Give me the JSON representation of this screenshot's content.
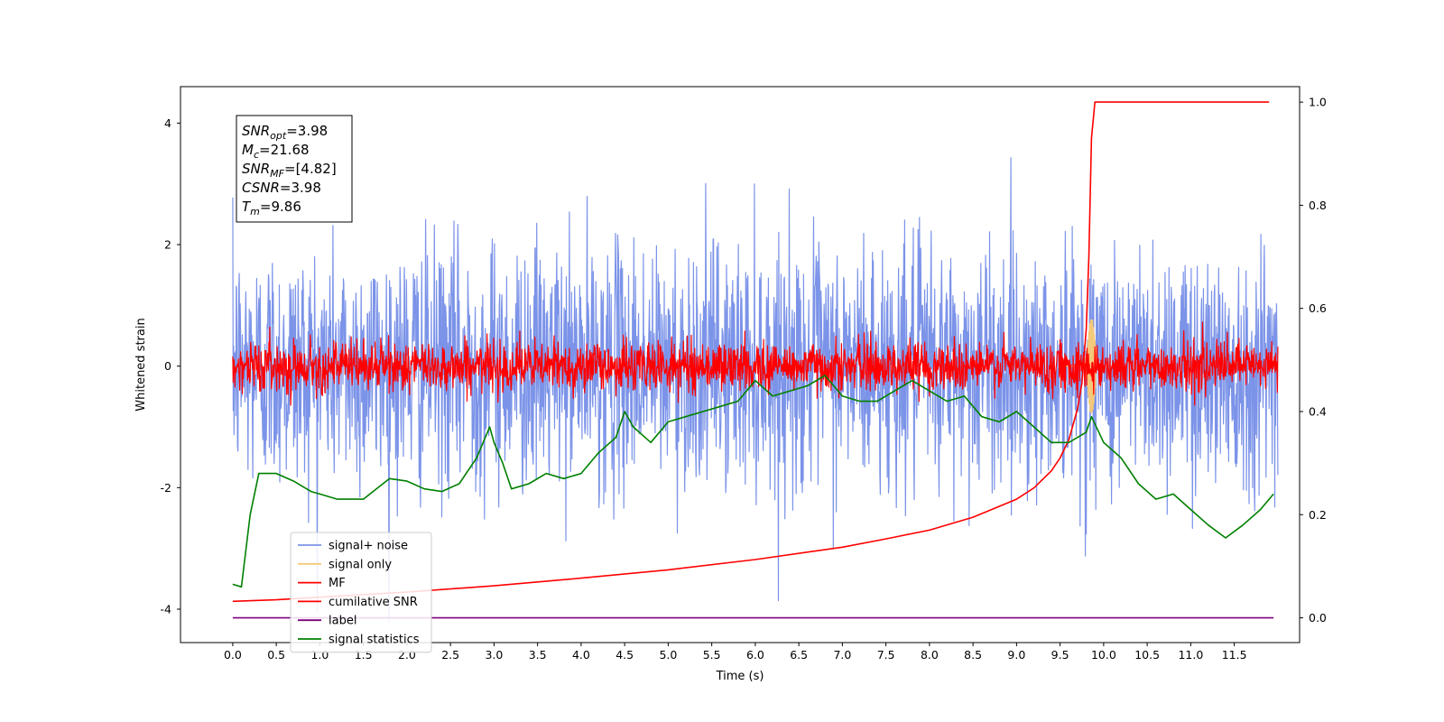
{
  "chart_data": {
    "type": "line",
    "xlabel": "Time (s)",
    "ylabel": "Whitened strain",
    "xlim": [
      -0.6,
      12.25
    ],
    "ylim": [
      -4.55,
      4.6
    ],
    "ylim_right": [
      -0.048,
      1.03
    ],
    "x_ticks": [
      "0.0",
      "0.5",
      "1.0",
      "1.5",
      "2.0",
      "2.5",
      "3.0",
      "3.5",
      "4.0",
      "4.5",
      "5.0",
      "5.5",
      "6.0",
      "6.5",
      "7.0",
      "7.5",
      "8.0",
      "8.5",
      "9.0",
      "9.5",
      "10.0",
      "10.5",
      "11.0",
      "11.5"
    ],
    "y_ticks_left": [
      "-4",
      "-2",
      "0",
      "2",
      "4"
    ],
    "y_ticks_right": [
      "0.0",
      "0.2",
      "0.4",
      "0.6",
      "0.8",
      "1.0"
    ],
    "grid": false,
    "legend_position": "lower-left",
    "annotation": {
      "lines": [
        {
          "main": "SNR",
          "sub": "opt",
          "value": "=3.98"
        },
        {
          "main": "M",
          "sub": "c",
          "value": "=21.68"
        },
        {
          "main": "SNR",
          "sub": "MF",
          "value": "=[4.82]"
        },
        {
          "main": "CSNR",
          "sub": "",
          "value": "=3.98"
        },
        {
          "main": "T",
          "sub": "m",
          "value": "=9.86"
        }
      ]
    },
    "series": [
      {
        "name": "signal+ noise",
        "color": "#7b93e8",
        "axis": "left",
        "kind": "noise",
        "sigma": 1.0,
        "t_start": 0.0,
        "t_end": 12.0
      },
      {
        "name": "signal only",
        "color": "#f5c97a",
        "axis": "left",
        "kind": "chirp",
        "peak_time": 9.86,
        "peak_amplitude": 0.8
      },
      {
        "name": "MF",
        "color": "#ff0000",
        "axis": "left",
        "kind": "noise",
        "sigma": 0.2,
        "t_start": 0.0,
        "t_end": 12.0
      },
      {
        "name": "cumilative SNR",
        "color": "#ff0000",
        "axis": "right",
        "x": [
          0.0,
          0.5,
          1.0,
          2.0,
          3.0,
          4.0,
          5.0,
          6.0,
          7.0,
          7.5,
          8.0,
          8.5,
          9.0,
          9.2,
          9.4,
          9.5,
          9.6,
          9.7,
          9.75,
          9.8,
          9.83,
          9.86,
          9.9,
          10.5,
          11.0,
          11.5,
          11.9
        ],
        "y": [
          0.032,
          0.035,
          0.04,
          0.05,
          0.062,
          0.077,
          0.093,
          0.113,
          0.137,
          0.153,
          0.17,
          0.195,
          0.23,
          0.252,
          0.285,
          0.31,
          0.345,
          0.405,
          0.455,
          0.56,
          0.7,
          0.93,
          1.0,
          1.0,
          1.0,
          1.0,
          1.0
        ]
      },
      {
        "name": "label",
        "color": "#7f007f",
        "axis": "right",
        "x": [
          0.0,
          11.95
        ],
        "y": [
          0.0,
          0.0
        ]
      },
      {
        "name": "signal statistics",
        "color": "#008000",
        "axis": "right",
        "x": [
          0.0,
          0.1,
          0.2,
          0.3,
          0.5,
          0.7,
          0.8,
          0.9,
          1.0,
          1.2,
          1.5,
          1.8,
          2.0,
          2.2,
          2.4,
          2.6,
          2.8,
          2.95,
          3.0,
          3.1,
          3.2,
          3.4,
          3.6,
          3.8,
          4.0,
          4.2,
          4.4,
          4.5,
          4.6,
          4.8,
          5.0,
          5.2,
          5.4,
          5.6,
          5.8,
          6.0,
          6.2,
          6.4,
          6.6,
          6.8,
          7.0,
          7.2,
          7.4,
          7.6,
          7.8,
          8.0,
          8.2,
          8.4,
          8.6,
          8.8,
          9.0,
          9.2,
          9.4,
          9.6,
          9.8,
          9.86,
          10.0,
          10.2,
          10.4,
          10.6,
          10.8,
          11.0,
          11.2,
          11.4,
          11.6,
          11.8,
          11.95
        ],
        "y": [
          0.065,
          0.06,
          0.2,
          0.28,
          0.28,
          0.265,
          0.255,
          0.245,
          0.24,
          0.23,
          0.23,
          0.27,
          0.265,
          0.25,
          0.245,
          0.26,
          0.31,
          0.37,
          0.34,
          0.3,
          0.25,
          0.26,
          0.28,
          0.27,
          0.28,
          0.32,
          0.35,
          0.4,
          0.37,
          0.34,
          0.38,
          0.39,
          0.4,
          0.41,
          0.42,
          0.46,
          0.43,
          0.44,
          0.45,
          0.47,
          0.43,
          0.42,
          0.42,
          0.44,
          0.46,
          0.44,
          0.42,
          0.43,
          0.39,
          0.38,
          0.4,
          0.37,
          0.34,
          0.34,
          0.36,
          0.39,
          0.34,
          0.31,
          0.26,
          0.23,
          0.24,
          0.21,
          0.18,
          0.155,
          0.18,
          0.21,
          0.24
        ]
      }
    ]
  }
}
